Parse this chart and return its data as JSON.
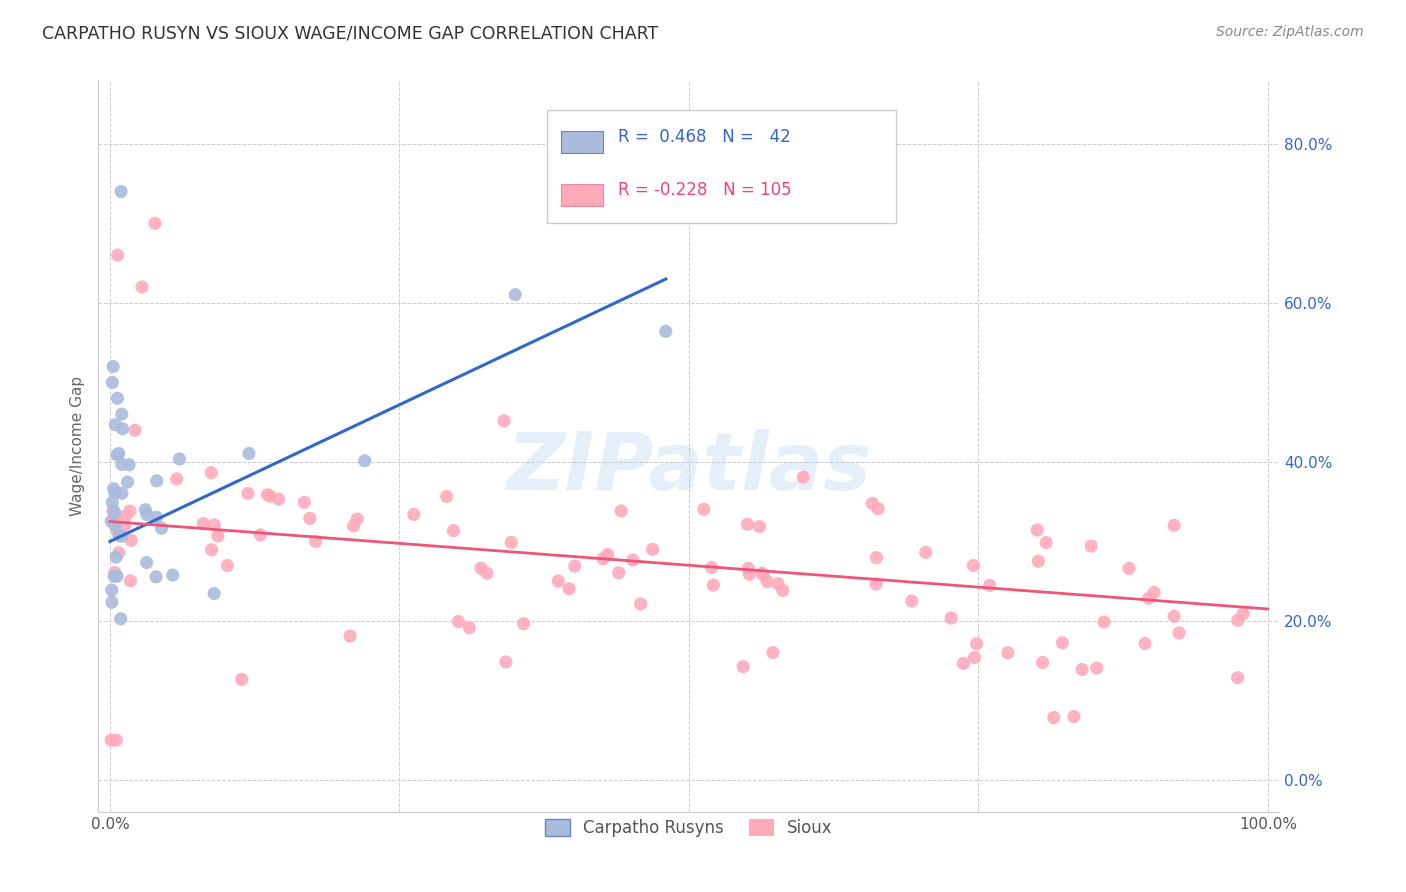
{
  "title": "CARPATHO RUSYN VS SIOUX WAGE/INCOME GAP CORRELATION CHART",
  "source": "Source: ZipAtlas.com",
  "ylabel": "Wage/Income Gap",
  "legend_label1": "Carpatho Rusyns",
  "legend_label2": "Sioux",
  "r1": 0.468,
  "n1": 42,
  "r2": -0.228,
  "n2": 105,
  "color_blue_fill": "#AABBDD",
  "color_blue_edge": "#6688BB",
  "color_blue_line": "#3366CC",
  "color_pink_fill": "#FFAABB",
  "color_pink_edge": "#EE8899",
  "color_pink_line": "#EE5577",
  "color_blue_text": "#3366CC",
  "color_pink_text": "#EE4477",
  "color_dark_text": "#444444",
  "watermark_color": "#AACCEE",
  "background": "#FFFFFF",
  "grid_color": "#CCCCCC",
  "xlim": [
    0.0,
    1.0
  ],
  "ylim": [
    0.0,
    0.85
  ],
  "yticks": [
    0.0,
    0.2,
    0.4,
    0.6,
    0.8
  ],
  "ytick_labels": [
    "0.0%",
    "20.0%",
    "40.0%",
    "60.0%",
    "80.0%"
  ],
  "xtick_labels_show": [
    "0.0%",
    "100.0%"
  ],
  "blue_line_x": [
    0.0,
    0.48
  ],
  "blue_line_y": [
    0.3,
    0.63
  ],
  "pink_line_x": [
    0.0,
    1.0
  ],
  "pink_line_y": [
    0.325,
    0.215
  ]
}
